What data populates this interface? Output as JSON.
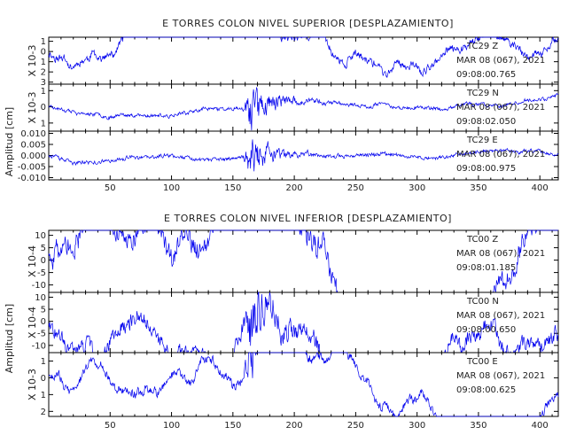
{
  "chart_data": [
    {
      "type": "line",
      "title": "E TORRES COLON NIVEL SUPERIOR [DESPLAZAMIENTO]",
      "ylabel": "Amplitud [cm]",
      "x_ticks": [
        50,
        100,
        150,
        200,
        250,
        300,
        350,
        400
      ],
      "xlim": [
        0,
        415
      ],
      "series": [
        {
          "name": "TC29  Z",
          "date_label": "MAR 08 (067), 2021",
          "time_label": "09:08:00.765",
          "scale_label": "X 10-3",
          "yticks": [
            -3,
            -2,
            -1,
            0,
            1
          ],
          "ytick_labels": [
            "3",
            "2",
            "1",
            "0",
            "1"
          ],
          "ylim": [
            -3.2,
            1.4
          ],
          "baseline": -0.2,
          "amp_quiet": 0.35,
          "amp_event": 1.6,
          "wander": 0.35,
          "seed": 11
        },
        {
          "name": "TC29  N",
          "date_label": "MAR 08 (067), 2021",
          "time_label": "09:08:02.050",
          "scale_label": "X 10-3",
          "yticks": [
            -1,
            0,
            1
          ],
          "ytick_labels": [
            "1",
            "0",
            "1"
          ],
          "ylim": [
            -1.5,
            1.4
          ],
          "baseline": 0,
          "amp_quiet": 0.1,
          "amp_event": 1.25,
          "wander": 0.05,
          "seed": 23
        },
        {
          "name": "TC29  E",
          "date_label": "MAR 08 (067), 2021",
          "time_label": "09:08:00.975",
          "scale_label": "",
          "yticks": [
            -0.01,
            -0.005,
            0,
            0.005,
            0.01
          ],
          "ytick_labels": [
            "-0.010",
            "-0.005",
            "0.000",
            "0.005",
            "0.010"
          ],
          "ylim": [
            -0.011,
            0.011
          ],
          "baseline": 0,
          "amp_quiet": 0.0008,
          "amp_event": 0.0085,
          "wander": 0.0003,
          "seed": 37
        }
      ]
    },
    {
      "type": "line",
      "title": "E TORRES COLON NIVEL INFERIOR [DESPLAZAMIENTO]",
      "ylabel": "Amplitud [cm]",
      "x_ticks": [
        50,
        100,
        150,
        200,
        250,
        300,
        350,
        400
      ],
      "xlim": [
        0,
        415
      ],
      "series": [
        {
          "name": "TC00  Z",
          "date_label": "MAR 08 (067), 2021",
          "time_label": "09:08:01.185",
          "scale_label": "X 10-4",
          "yticks": [
            -10,
            -5,
            0,
            5,
            10
          ],
          "ytick_labels": [
            "-10",
            "-5",
            "0",
            "5",
            "10"
          ],
          "ylim": [
            -13,
            12
          ],
          "baseline": 0,
          "amp_quiet": 4,
          "amp_event": 9,
          "wander": 4,
          "seed": 51
        },
        {
          "name": "TC00  N",
          "date_label": "MAR 08 (067), 2021",
          "time_label": "09:08:00.650",
          "scale_label": "X 10-4",
          "yticks": [
            -10,
            -5,
            0,
            5,
            10
          ],
          "ytick_labels": [
            "-10",
            "-5",
            "0",
            "5",
            "10"
          ],
          "ylim": [
            -13,
            12
          ],
          "baseline": 0,
          "amp_quiet": 3,
          "amp_event": 11,
          "wander": 2.5,
          "seed": 67
        },
        {
          "name": "TC00  E",
          "date_label": "MAR 08 (067), 2021",
          "time_label": "09:08:00.625",
          "scale_label": "X 10-3",
          "yticks": [
            -2,
            -1,
            0,
            1
          ],
          "ytick_labels": [
            "2",
            "1",
            "0",
            "1"
          ],
          "ylim": [
            -2.3,
            1.5
          ],
          "baseline": 0,
          "amp_quiet": 0.25,
          "amp_event": 1.5,
          "wander": 0.3,
          "seed": 83
        }
      ]
    }
  ]
}
